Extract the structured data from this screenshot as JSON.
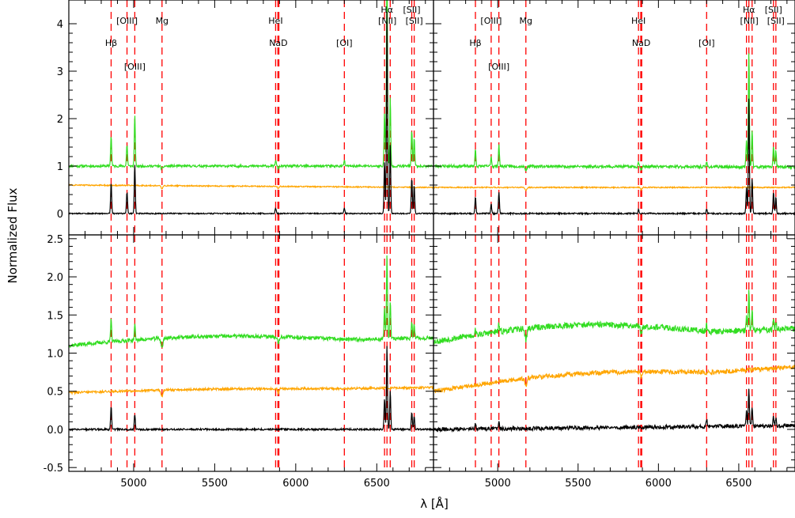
{
  "figure": {
    "xlabel": "λ [Å]",
    "ylabel": "Normalized Flux"
  },
  "chart_data": {
    "type": "line",
    "xlabel": "λ [Å]",
    "ylabel": "Normalized Flux",
    "xlim": [
      4600,
      6850
    ],
    "x_ticks": [
      5000,
      5500,
      6000,
      6500
    ],
    "x_tick_labels": [
      "5000",
      "5500",
      "6000",
      "6500"
    ],
    "grid": false,
    "colors": {
      "green": "#33dd22",
      "orange": "#ffa500",
      "black": "#000000",
      "red": "#ff0000",
      "frame": "#000000"
    },
    "line_markers": [
      {
        "label": "Hβ",
        "wavelengths": [
          4861
        ],
        "label_row": 2
      },
      {
        "label": "[OIII]",
        "wavelengths": [
          4959
        ],
        "label_row": 1
      },
      {
        "label": "[OIII]",
        "wavelengths": [
          5007
        ],
        "label_row": 3
      },
      {
        "label": "Mg",
        "wavelengths": [
          5175
        ],
        "label_row": 1
      },
      {
        "label": "HeI",
        "wavelengths": [
          5876
        ],
        "label_row": 1
      },
      {
        "label": "NaD",
        "wavelengths": [
          5890,
          5896
        ],
        "label_row": 2
      },
      {
        "label": "[OI]",
        "wavelengths": [
          6300
        ],
        "label_row": 2
      },
      {
        "label": "Hα",
        "wavelengths": [
          6563
        ],
        "label_row": 0
      },
      {
        "label": "[NII]",
        "wavelengths": [
          6548,
          6583
        ],
        "label_row": 1
      },
      {
        "label": "[SII]",
        "wavelengths": [
          6716
        ],
        "label_row": 0
      },
      {
        "label": "[SII]",
        "wavelengths": [
          6731
        ],
        "label_row": 1
      }
    ],
    "panels": [
      {
        "position": "top-left",
        "ylim": [
          -0.45,
          4.5
        ],
        "y_ticks": [
          0,
          1,
          2,
          3,
          4
        ],
        "y_tick_labels": [
          "0",
          "1",
          "2",
          "3",
          "4"
        ],
        "show_line_labels": true,
        "seed": 11,
        "series": [
          {
            "color": "green",
            "continuum": [
              1.0,
              1.0
            ],
            "noise": 0.025,
            "emission": 1.0,
            "absorption": 0.06
          },
          {
            "color": "orange",
            "continuum": [
              0.6,
              0.55
            ],
            "noise": 0.012,
            "emission": 0.0,
            "absorption": 0.06
          },
          {
            "color": "black",
            "continuum": [
              0.0,
              0.0
            ],
            "noise": 0.012,
            "emission": 1.0,
            "absorption": 0.0
          }
        ],
        "emission_lines": [
          {
            "wl": 4861,
            "amp": 0.65
          },
          {
            "wl": 4959,
            "amp": 0.45
          },
          {
            "wl": 5007,
            "amp": 1.05
          },
          {
            "wl": 5876,
            "amp": 0.12
          },
          {
            "wl": 6300,
            "amp": 0.12
          },
          {
            "wl": 6548,
            "amp": 1.1
          },
          {
            "wl": 6563,
            "amp": 4.3
          },
          {
            "wl": 6583,
            "amp": 1.45
          },
          {
            "wl": 6716,
            "amp": 0.75
          },
          {
            "wl": 6731,
            "amp": 0.6
          }
        ]
      },
      {
        "position": "top-right",
        "ylim": [
          -0.45,
          4.5
        ],
        "y_ticks": [
          0,
          1,
          2,
          3,
          4
        ],
        "y_tick_labels": [
          "",
          "",
          "",
          "",
          ""
        ],
        "show_line_labels": true,
        "seed": 23,
        "series": [
          {
            "color": "green",
            "continuum": [
              1.0,
              0.98
            ],
            "noise": 0.03,
            "emission": 1.0,
            "absorption": 0.07
          },
          {
            "color": "orange",
            "continuum": [
              0.55,
              0.55
            ],
            "noise": 0.012,
            "emission": 0.0,
            "absorption": 0.06
          },
          {
            "color": "black",
            "continuum": [
              0.0,
              0.0
            ],
            "noise": 0.015,
            "emission": 1.0,
            "absorption": 0.0
          }
        ],
        "emission_lines": [
          {
            "wl": 4861,
            "amp": 0.35
          },
          {
            "wl": 4959,
            "amp": 0.2
          },
          {
            "wl": 5007,
            "amp": 0.45
          },
          {
            "wl": 5876,
            "amp": 0.1
          },
          {
            "wl": 6300,
            "amp": 0.1
          },
          {
            "wl": 6548,
            "amp": 0.55
          },
          {
            "wl": 6563,
            "amp": 2.45
          },
          {
            "wl": 6583,
            "amp": 0.75
          },
          {
            "wl": 6716,
            "amp": 0.45
          },
          {
            "wl": 6731,
            "amp": 0.35
          }
        ]
      },
      {
        "position": "bottom-left",
        "ylim": [
          -0.55,
          2.55
        ],
        "y_ticks": [
          -0.5,
          0.0,
          0.5,
          1.0,
          1.5,
          2.0,
          2.5
        ],
        "y_tick_labels": [
          "-0.5",
          "0.0",
          "0.5",
          "1.0",
          "1.5",
          "2.0",
          "2.5"
        ],
        "show_line_labels": false,
        "seed": 37,
        "series": [
          {
            "color": "green",
            "continuum": [
              1.1,
              1.2
            ],
            "bump": 0.08,
            "noise": 0.025,
            "emission": 1.0,
            "absorption": 0.12
          },
          {
            "color": "orange",
            "continuum": [
              0.48,
              0.55
            ],
            "bump": 0.02,
            "noise": 0.015,
            "emission": 0.0,
            "absorption": 0.08
          },
          {
            "color": "black",
            "continuum": [
              0.0,
              0.0
            ],
            "noise": 0.012,
            "emission": 1.0,
            "absorption": 0.0
          }
        ],
        "emission_lines": [
          {
            "wl": 4861,
            "amp": 0.3
          },
          {
            "wl": 5007,
            "amp": 0.2
          },
          {
            "wl": 6548,
            "amp": 0.4
          },
          {
            "wl": 6563,
            "amp": 1.1
          },
          {
            "wl": 6583,
            "amp": 0.5
          },
          {
            "wl": 6716,
            "amp": 0.22
          },
          {
            "wl": 6731,
            "amp": 0.18
          }
        ]
      },
      {
        "position": "bottom-right",
        "ylim": [
          -0.55,
          2.55
        ],
        "y_ticks": [
          -0.5,
          0.0,
          0.5,
          1.0,
          1.5,
          2.0,
          2.5
        ],
        "y_tick_labels": [
          "",
          "",
          "",
          "",
          "",
          "",
          ""
        ],
        "show_line_labels": false,
        "seed": 53,
        "series": [
          {
            "color": "green",
            "continuum": [
              1.15,
              1.32
            ],
            "bump": 0.15,
            "noise": 0.04,
            "emission": 1.0,
            "absorption": 0.15
          },
          {
            "color": "orange",
            "continuum": [
              0.5,
              0.82
            ],
            "bump": 0.1,
            "noise": 0.03,
            "emission": 0.0,
            "absorption": 0.1
          },
          {
            "color": "black",
            "continuum": [
              0.0,
              0.05
            ],
            "noise": 0.025,
            "emission": 1.0,
            "absorption": 0.0
          }
        ],
        "emission_lines": [
          {
            "wl": 4861,
            "amp": 0.08
          },
          {
            "wl": 5007,
            "amp": 0.1
          },
          {
            "wl": 6300,
            "amp": 0.1
          },
          {
            "wl": 6548,
            "amp": 0.2
          },
          {
            "wl": 6563,
            "amp": 0.5
          },
          {
            "wl": 6583,
            "amp": 0.25
          },
          {
            "wl": 6716,
            "amp": 0.12
          },
          {
            "wl": 6731,
            "amp": 0.1
          }
        ]
      }
    ]
  }
}
